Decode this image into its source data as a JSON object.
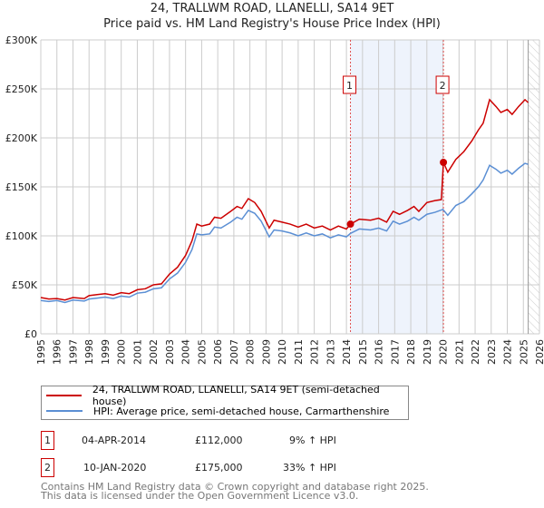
{
  "title": "24, TRALLWM ROAD, LLANELLI, SA14 9ET",
  "subtitle": "Price paid vs. HM Land Registry's House Price Index (HPI)",
  "chart_data": {
    "type": "line",
    "xlim": [
      1995,
      2026
    ],
    "ylim": [
      0,
      300000
    ],
    "yticks": [
      {
        "v": 0,
        "label": "£0"
      },
      {
        "v": 50000,
        "label": "£50K"
      },
      {
        "v": 100000,
        "label": "£100K"
      },
      {
        "v": 150000,
        "label": "£150K"
      },
      {
        "v": 200000,
        "label": "£200K"
      },
      {
        "v": 250000,
        "label": "£250K"
      },
      {
        "v": 300000,
        "label": "£300K"
      }
    ],
    "xticks": [
      "1995",
      "1996",
      "1997",
      "1998",
      "1999",
      "2000",
      "2001",
      "2002",
      "2003",
      "2004",
      "2005",
      "2006",
      "2007",
      "2008",
      "2009",
      "2010",
      "2011",
      "2012",
      "2013",
      "2014",
      "2015",
      "2016",
      "2017",
      "2018",
      "2019",
      "2020",
      "2021",
      "2022",
      "2023",
      "2024",
      "2025",
      "2026"
    ],
    "shaded_period": [
      2014.25,
      2020.03
    ],
    "forecast_hatch_from": 2025.3,
    "series": [
      {
        "name": "24, TRALLWM ROAD, LLANELLI, SA14 9ET (semi-detached house)",
        "color": "#cc0000",
        "points": [
          [
            1995,
            37000
          ],
          [
            1995.5,
            35500
          ],
          [
            1996,
            36000
          ],
          [
            1996.5,
            34500
          ],
          [
            1997,
            37000
          ],
          [
            1997.7,
            36000
          ],
          [
            1998,
            39000
          ],
          [
            1998.5,
            40000
          ],
          [
            1999,
            41000
          ],
          [
            1999.5,
            39500
          ],
          [
            2000,
            42000
          ],
          [
            2000.5,
            41000
          ],
          [
            2001,
            45000
          ],
          [
            2001.5,
            46000
          ],
          [
            2002,
            50000
          ],
          [
            2002.5,
            51000
          ],
          [
            2003,
            61000
          ],
          [
            2003.5,
            68000
          ],
          [
            2004,
            80000
          ],
          [
            2004.4,
            95000
          ],
          [
            2004.7,
            112000
          ],
          [
            2005,
            110000
          ],
          [
            2005.5,
            112000
          ],
          [
            2005.8,
            119000
          ],
          [
            2006.2,
            118000
          ],
          [
            2006.8,
            125000
          ],
          [
            2007.2,
            130000
          ],
          [
            2007.5,
            128000
          ],
          [
            2007.9,
            138000
          ],
          [
            2008.3,
            134000
          ],
          [
            2008.7,
            125000
          ],
          [
            2009.2,
            108000
          ],
          [
            2009.5,
            116000
          ],
          [
            2010,
            114000
          ],
          [
            2010.5,
            112000
          ],
          [
            2011,
            109000
          ],
          [
            2011.5,
            112000
          ],
          [
            2012,
            108000
          ],
          [
            2012.5,
            110000
          ],
          [
            2013,
            106000
          ],
          [
            2013.5,
            110000
          ],
          [
            2014,
            107000
          ],
          [
            2014.25,
            112000
          ],
          [
            2014.8,
            117000
          ],
          [
            2015.5,
            116000
          ],
          [
            2016,
            118000
          ],
          [
            2016.5,
            114000
          ],
          [
            2016.9,
            125000
          ],
          [
            2017.3,
            122000
          ],
          [
            2017.8,
            126000
          ],
          [
            2018.2,
            130000
          ],
          [
            2018.5,
            125000
          ],
          [
            2019,
            134000
          ],
          [
            2019.5,
            136000
          ],
          [
            2019.9,
            137000
          ],
          [
            2020.03,
            175000
          ],
          [
            2020.3,
            165000
          ],
          [
            2020.8,
            178000
          ],
          [
            2021.3,
            186000
          ],
          [
            2021.8,
            197000
          ],
          [
            2022.2,
            208000
          ],
          [
            2022.5,
            215000
          ],
          [
            2022.9,
            239000
          ],
          [
            2023.3,
            232000
          ],
          [
            2023.6,
            226000
          ],
          [
            2024,
            229000
          ],
          [
            2024.3,
            224000
          ],
          [
            2024.7,
            232000
          ],
          [
            2025.1,
            239000
          ],
          [
            2025.3,
            236000
          ]
        ]
      },
      {
        "name": "HPI: Average price, semi-detached house, Carmarthenshire",
        "color": "#5b8fd4",
        "points": [
          [
            1995,
            34000
          ],
          [
            1995.5,
            33000
          ],
          [
            1996,
            34000
          ],
          [
            1996.5,
            32000
          ],
          [
            1997,
            34500
          ],
          [
            1997.7,
            33500
          ],
          [
            1998,
            35500
          ],
          [
            1998.5,
            36500
          ],
          [
            1999,
            37500
          ],
          [
            1999.5,
            36000
          ],
          [
            2000,
            38500
          ],
          [
            2000.5,
            37500
          ],
          [
            2001,
            41500
          ],
          [
            2001.5,
            42500
          ],
          [
            2002,
            46000
          ],
          [
            2002.5,
            47000
          ],
          [
            2003,
            56000
          ],
          [
            2003.5,
            62000
          ],
          [
            2004,
            73000
          ],
          [
            2004.4,
            86000
          ],
          [
            2004.7,
            102000
          ],
          [
            2005,
            101000
          ],
          [
            2005.5,
            102000
          ],
          [
            2005.8,
            109000
          ],
          [
            2006.2,
            108000
          ],
          [
            2006.8,
            114000
          ],
          [
            2007.2,
            119000
          ],
          [
            2007.5,
            117000
          ],
          [
            2007.9,
            126000
          ],
          [
            2008.3,
            123000
          ],
          [
            2008.7,
            115000
          ],
          [
            2009.2,
            99000
          ],
          [
            2009.5,
            106000
          ],
          [
            2010,
            105000
          ],
          [
            2010.5,
            103000
          ],
          [
            2011,
            100000
          ],
          [
            2011.5,
            103000
          ],
          [
            2012,
            100000
          ],
          [
            2012.5,
            102000
          ],
          [
            2013,
            98000
          ],
          [
            2013.5,
            101000
          ],
          [
            2014,
            99000
          ],
          [
            2014.25,
            102500
          ],
          [
            2014.8,
            107000
          ],
          [
            2015.5,
            106000
          ],
          [
            2016,
            108000
          ],
          [
            2016.5,
            105000
          ],
          [
            2016.9,
            115000
          ],
          [
            2017.3,
            112000
          ],
          [
            2017.8,
            115000
          ],
          [
            2018.2,
            119000
          ],
          [
            2018.5,
            116000
          ],
          [
            2019,
            122000
          ],
          [
            2019.5,
            124000
          ],
          [
            2020,
            127000
          ],
          [
            2020.3,
            121000
          ],
          [
            2020.8,
            131000
          ],
          [
            2021.3,
            135000
          ],
          [
            2021.8,
            143000
          ],
          [
            2022.2,
            150000
          ],
          [
            2022.5,
            157000
          ],
          [
            2022.9,
            172000
          ],
          [
            2023.3,
            168000
          ],
          [
            2023.6,
            164000
          ],
          [
            2024,
            167000
          ],
          [
            2024.3,
            163000
          ],
          [
            2024.7,
            169000
          ],
          [
            2025.1,
            174000
          ],
          [
            2025.3,
            173000
          ]
        ]
      }
    ],
    "sales": [
      {
        "label": "1",
        "x": 2014.25,
        "y": 112000
      },
      {
        "label": "2",
        "x": 2020.03,
        "y": 175000
      }
    ]
  },
  "legend": {
    "property": "24, TRALLWM ROAD, LLANELLI, SA14 9ET (semi-detached house)",
    "hpi": "HPI: Average price, semi-detached house, Carmarthenshire"
  },
  "transactions": [
    {
      "num": "1",
      "date": "04-APR-2014",
      "price": "£112,000",
      "hpi": "9% ↑ HPI"
    },
    {
      "num": "2",
      "date": "10-JAN-2020",
      "price": "£175,000",
      "hpi": "33% ↑ HPI"
    }
  ],
  "footer": [
    "Contains HM Land Registry data © Crown copyright and database right 2025.",
    "This data is licensed under the Open Government Licence v3.0."
  ]
}
